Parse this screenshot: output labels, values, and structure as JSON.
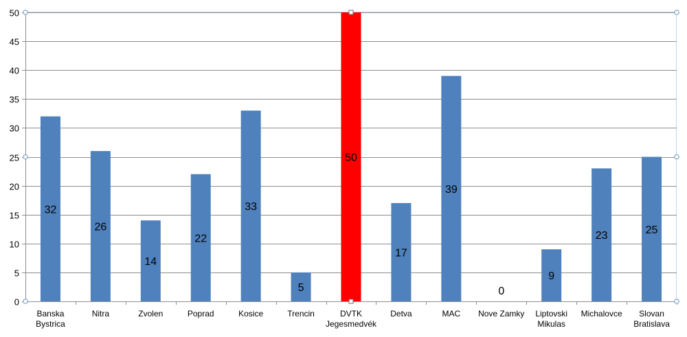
{
  "chart_data": {
    "type": "bar",
    "title": "",
    "xlabel": "",
    "ylabel": "",
    "ylim": [
      0,
      50
    ],
    "yticks": [
      0,
      5,
      10,
      15,
      20,
      25,
      30,
      35,
      40,
      45,
      50
    ],
    "grid": true,
    "legend": "none",
    "categories": [
      [
        "Banska",
        "Bystrica"
      ],
      [
        "Nitra"
      ],
      [
        "Zvolen"
      ],
      [
        "Poprad"
      ],
      [
        "Kosice"
      ],
      [
        "Trencin"
      ],
      [
        "DVTK",
        "Jegesmedvék"
      ],
      [
        "Detva"
      ],
      [
        "MAC"
      ],
      [
        "Nove Zamky"
      ],
      [
        "Liptovski",
        "Mikulas"
      ],
      [
        "Michalovce"
      ],
      [
        "Slovan",
        "Bratislava"
      ]
    ],
    "values": [
      32,
      26,
      14,
      22,
      33,
      5,
      50,
      17,
      39,
      0,
      9,
      23,
      25
    ],
    "data_labels": [
      "32",
      "26",
      "14",
      "22",
      "33",
      "5",
      "50",
      "17",
      "39",
      "0",
      "9",
      "23",
      "25"
    ],
    "highlight_index": 6,
    "colors": {
      "bar": "#4f81bd",
      "highlight": "#ff0000",
      "grid": "#8c8c8c",
      "axis": "#8c8c8c",
      "text": "#000000",
      "handle": "#7aa3c5"
    }
  }
}
